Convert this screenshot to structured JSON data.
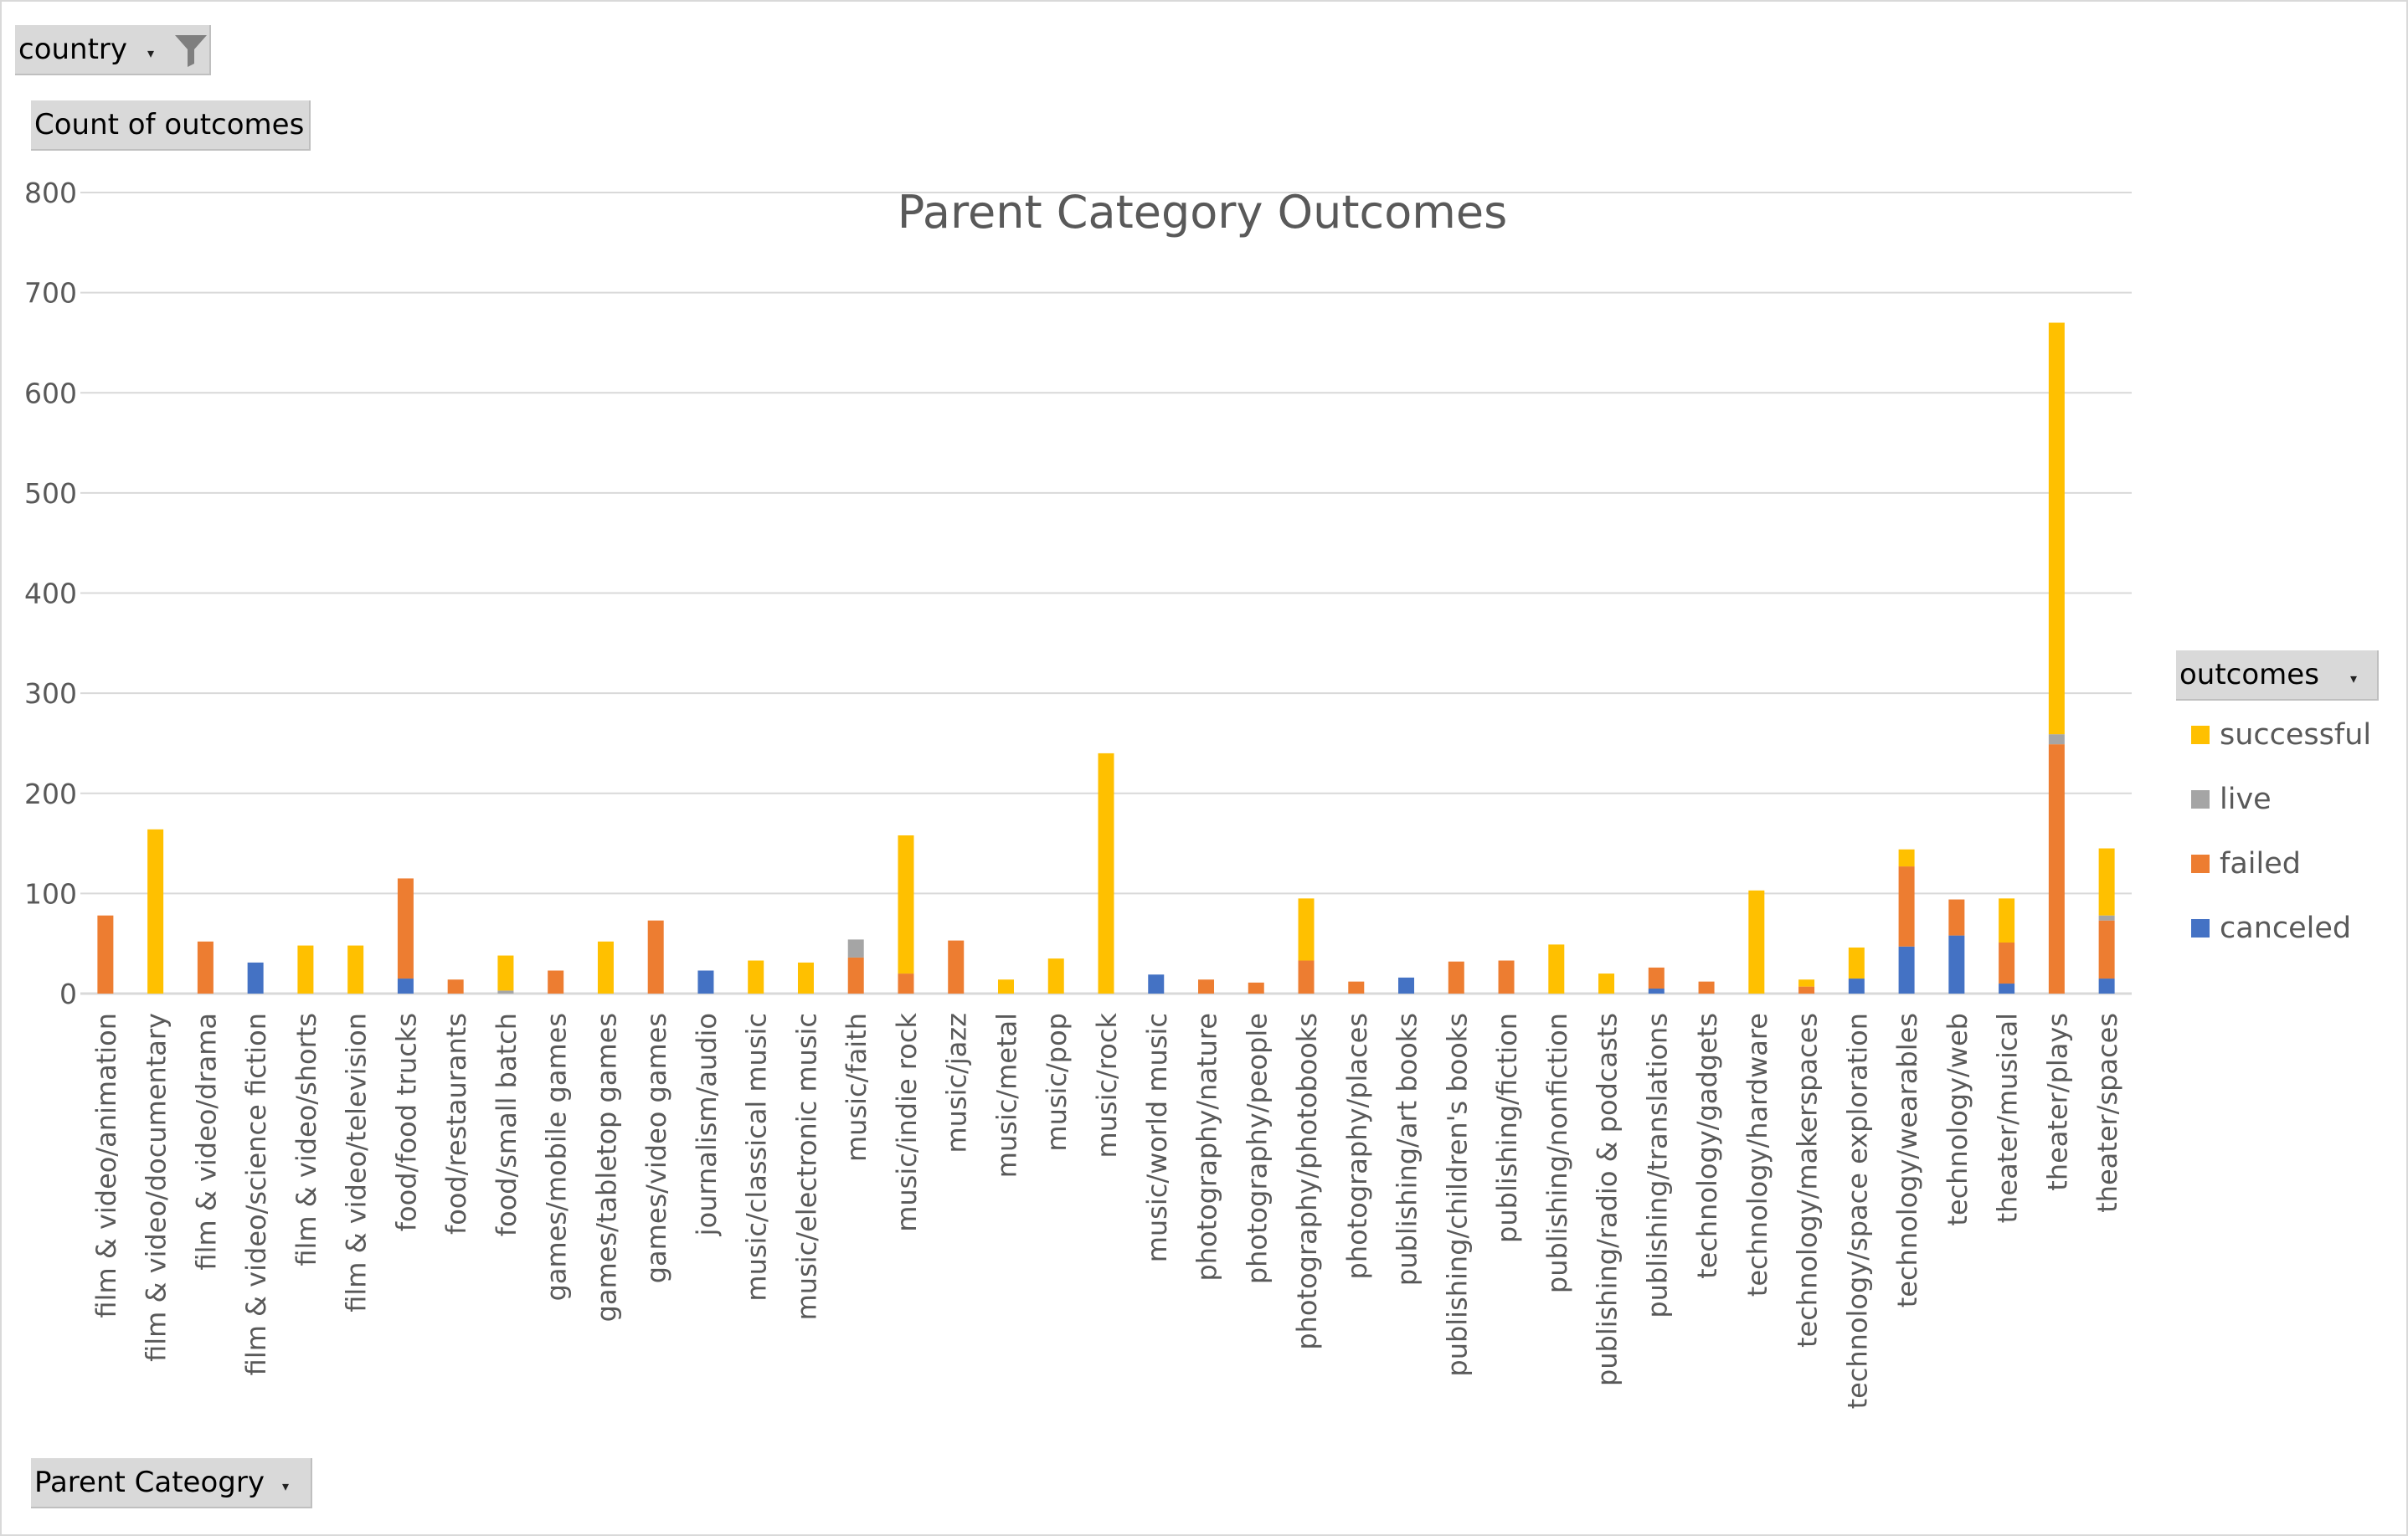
{
  "filters": {
    "country": "country",
    "values_field": "Count of outcomes",
    "legend_field": "outcomes",
    "axis_field": "Parent Cateogry"
  },
  "icons": {
    "filter": "funnel-filter-icon",
    "dropdown": "chevron-down-icon"
  },
  "colors": {
    "successful": "#FFC000",
    "live": "#A5A5A5",
    "failed": "#ED7D31",
    "canceled": "#4472C4",
    "gridline": "#d9d9d9",
    "axis_text": "#595959",
    "button_bg": "#d9d9d9"
  },
  "chart_data": {
    "type": "bar",
    "stacked": true,
    "title": "Parent Category Outcomes",
    "xlabel": "",
    "ylabel": "",
    "ylim": [
      0,
      800
    ],
    "yticks": [
      0,
      100,
      200,
      300,
      400,
      500,
      600,
      700,
      800
    ],
    "grid": true,
    "legend_position": "right",
    "categories": [
      "film & video/animation",
      "film & video/documentary",
      "film & video/drama",
      "film & video/science fiction",
      "film & video/shorts",
      "film & video/television",
      "food/food trucks",
      "food/restaurants",
      "food/small batch",
      "games/mobile games",
      "games/tabletop games",
      "games/video games",
      "journalism/audio",
      "music/classical music",
      "music/electronic music",
      "music/faith",
      "music/indie rock",
      "music/jazz",
      "music/metal",
      "music/pop",
      "music/rock",
      "music/world music",
      "photography/nature",
      "photography/people",
      "photography/photobooks",
      "photography/places",
      "publishing/art books",
      "publishing/children's books",
      "publishing/fiction",
      "publishing/nonfiction",
      "publishing/radio & podcasts",
      "publishing/translations",
      "technology/gadgets",
      "technology/hardware",
      "technology/makerspaces",
      "technology/space exploration",
      "technology/wearables",
      "technology/web",
      "theater/musical",
      "theater/plays",
      "theater/spaces"
    ],
    "series": [
      {
        "name": "canceled",
        "values": [
          0,
          0,
          0,
          31,
          0,
          0,
          15,
          0,
          0,
          0,
          0,
          0,
          23,
          0,
          0,
          0,
          0,
          0,
          0,
          0,
          0,
          19,
          0,
          0,
          0,
          0,
          16,
          0,
          0,
          0,
          0,
          5,
          0,
          0,
          0,
          15,
          47,
          58,
          10,
          0,
          15
        ]
      },
      {
        "name": "failed",
        "values": [
          78,
          0,
          52,
          0,
          0,
          0,
          100,
          14,
          0,
          23,
          0,
          73,
          0,
          0,
          0,
          36,
          20,
          53,
          0,
          0,
          0,
          0,
          14,
          11,
          33,
          12,
          0,
          32,
          33,
          0,
          0,
          21,
          12,
          0,
          7,
          0,
          80,
          36,
          41,
          249,
          58
        ]
      },
      {
        "name": "live",
        "values": [
          0,
          0,
          0,
          0,
          0,
          0,
          0,
          0,
          3,
          0,
          0,
          0,
          0,
          0,
          0,
          18,
          0,
          0,
          0,
          0,
          0,
          0,
          0,
          0,
          0,
          0,
          0,
          0,
          0,
          0,
          0,
          0,
          0,
          0,
          0,
          0,
          0,
          0,
          0,
          10,
          5
        ]
      },
      {
        "name": "successful",
        "values": [
          0,
          164,
          0,
          0,
          48,
          48,
          0,
          0,
          35,
          0,
          52,
          0,
          0,
          33,
          31,
          0,
          138,
          0,
          14,
          35,
          240,
          0,
          0,
          0,
          62,
          0,
          0,
          0,
          0,
          49,
          20,
          0,
          0,
          103,
          7,
          31,
          17,
          0,
          44,
          411,
          67
        ]
      }
    ],
    "legend": [
      "successful",
      "live",
      "failed",
      "canceled"
    ]
  }
}
